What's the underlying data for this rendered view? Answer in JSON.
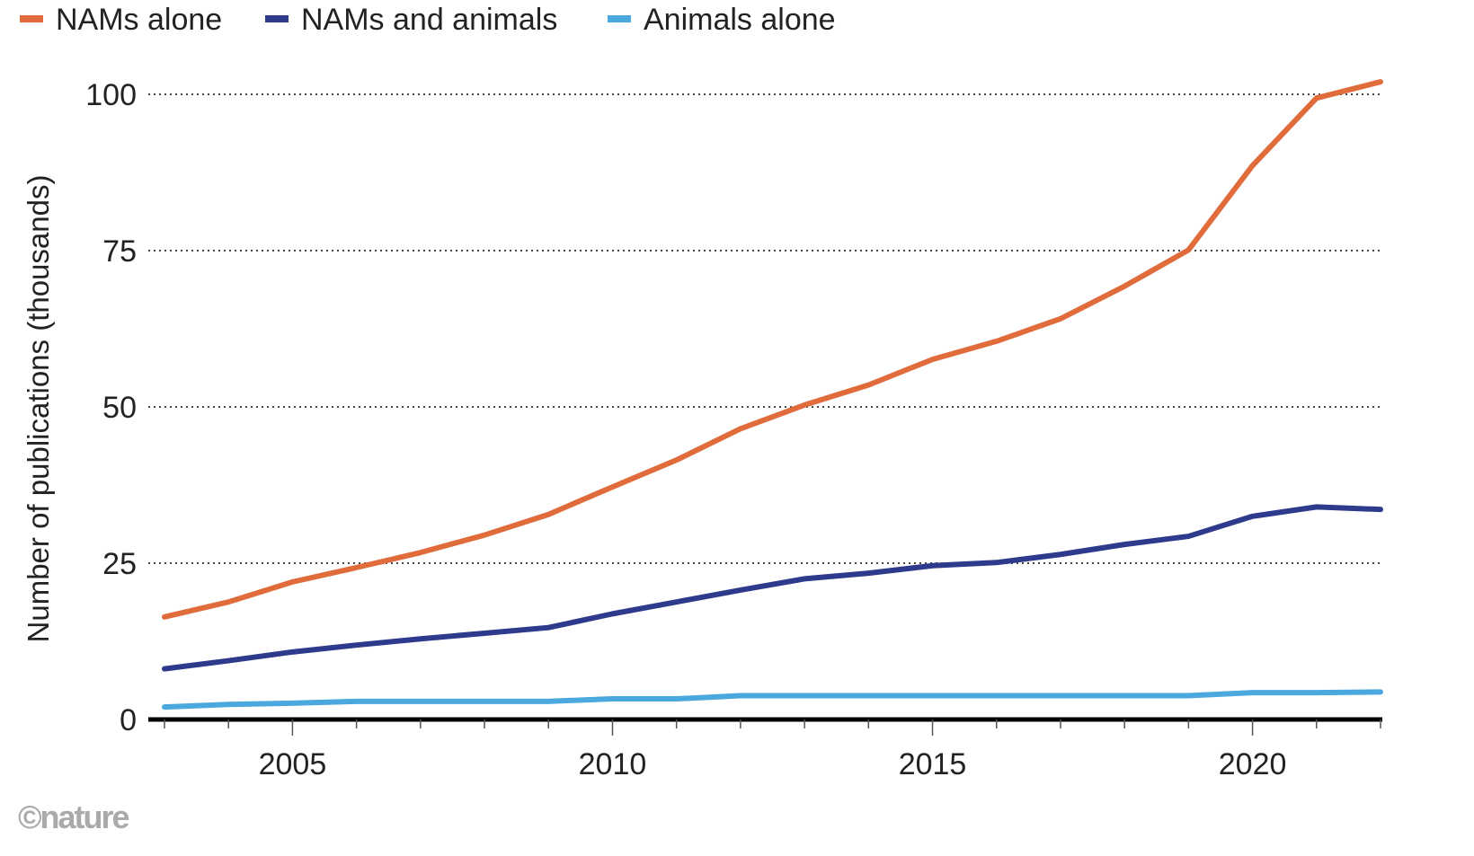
{
  "chart_data": {
    "type": "line",
    "title": "",
    "xlabel": "",
    "ylabel": "Number of publications (thousands)",
    "xlim": [
      2003,
      2022
    ],
    "ylim": [
      0,
      100
    ],
    "x_ticks": [
      2005,
      2010,
      2015,
      2020
    ],
    "y_ticks": [
      0,
      25,
      50,
      75,
      100
    ],
    "grid": "horizontal dotted",
    "legend_position": "top-left",
    "x": [
      2003,
      2004,
      2005,
      2006,
      2007,
      2008,
      2009,
      2010,
      2011,
      2012,
      2013,
      2014,
      2015,
      2016,
      2017,
      2018,
      2019,
      2020,
      2021,
      2022
    ],
    "series": [
      {
        "name": "NAMs alone",
        "color": "#e06c3c",
        "values": [
          16.4,
          18.8,
          22,
          24.3,
          26.7,
          29.5,
          32.8,
          37.2,
          41.5,
          46.5,
          50.3,
          53.5,
          57.6,
          60.5,
          64.1,
          69.3,
          75.1,
          88.6,
          99.4,
          102
        ]
      },
      {
        "name": "NAMs and animals",
        "color": "#2e3a8c",
        "values": [
          8.1,
          9.4,
          10.8,
          11.9,
          12.9,
          13.8,
          14.7,
          16.9,
          18.8,
          20.7,
          22.5,
          23.4,
          24.6,
          25.1,
          26.4,
          28,
          29.3,
          32.5,
          34,
          33.6
        ]
      },
      {
        "name": "Animals alone",
        "color": "#4aa8de",
        "values": [
          2.0,
          2.4,
          2.6,
          2.9,
          2.9,
          2.9,
          2.9,
          3.3,
          3.3,
          3.8,
          3.8,
          3.8,
          3.8,
          3.8,
          3.8,
          3.8,
          3.8,
          4.3,
          4.3,
          4.4
        ]
      }
    ]
  },
  "credit": "©nature"
}
